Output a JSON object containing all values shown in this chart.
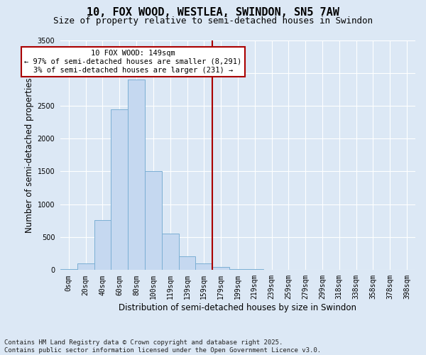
{
  "title_line1": "10, FOX WOOD, WESTLEA, SWINDON, SN5 7AW",
  "title_line2": "Size of property relative to semi-detached houses in Swindon",
  "xlabel": "Distribution of semi-detached houses by size in Swindon",
  "ylabel": "Number of semi-detached properties",
  "categories": [
    "0sqm",
    "20sqm",
    "40sqm",
    "60sqm",
    "80sqm",
    "100sqm",
    "119sqm",
    "139sqm",
    "159sqm",
    "179sqm",
    "199sqm",
    "219sqm",
    "239sqm",
    "259sqm",
    "279sqm",
    "299sqm",
    "318sqm",
    "338sqm",
    "358sqm",
    "378sqm",
    "398sqm"
  ],
  "bar_heights": [
    10,
    100,
    760,
    2450,
    2900,
    1500,
    550,
    210,
    100,
    40,
    10,
    5,
    2,
    1,
    0,
    0,
    0,
    0,
    0,
    0,
    0
  ],
  "bar_color": "#c5d8f0",
  "bar_edge_color": "#7bafd4",
  "vline_color": "#aa0000",
  "vline_position": 8.5,
  "annotation_text": "10 FOX WOOD: 149sqm\n← 97% of semi-detached houses are smaller (8,291)\n3% of semi-detached houses are larger (231) →",
  "annotation_box_edgecolor": "#aa0000",
  "annotation_bg": "#ffffff",
  "ylim": [
    0,
    3500
  ],
  "yticks": [
    0,
    500,
    1000,
    1500,
    2000,
    2500,
    3000,
    3500
  ],
  "background_color": "#dce8f5",
  "plot_bg_color": "#dce8f5",
  "footer_text": "Contains HM Land Registry data © Crown copyright and database right 2025.\nContains public sector information licensed under the Open Government Licence v3.0.",
  "grid_color": "#ffffff",
  "title_fontsize": 11,
  "subtitle_fontsize": 9,
  "tick_fontsize": 7,
  "label_fontsize": 8.5,
  "annot_fontsize": 7.5,
  "footer_fontsize": 6.5
}
